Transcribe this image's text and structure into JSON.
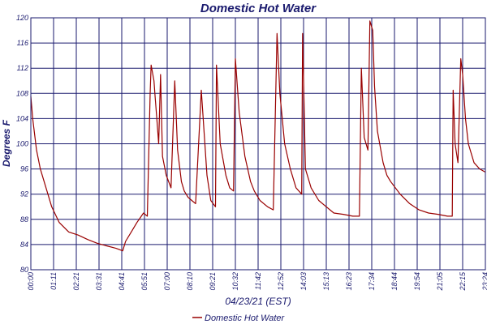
{
  "chart_data": {
    "type": "line",
    "title": "Domestic Hot Water",
    "xlabel": "04/23/21 (EST)",
    "ylabel": "Degrees F",
    "ylim": [
      80,
      120
    ],
    "yticks": [
      80,
      84,
      88,
      92,
      96,
      100,
      104,
      108,
      112,
      116,
      120
    ],
    "ytick_labels": [
      "80",
      "84",
      "88",
      "92",
      "96",
      "100",
      "104",
      "108",
      "112",
      "116",
      "120"
    ],
    "xlim": [
      0,
      24
    ],
    "xtick_labels": [
      "00:00",
      "01:11",
      "02:21",
      "03:31",
      "04:41",
      "05:51",
      "07:00",
      "08:10",
      "09:21",
      "10:32",
      "11:42",
      "12:52",
      "14:03",
      "15:13",
      "16:23",
      "17:34",
      "18:44",
      "19:54",
      "21:05",
      "22:15",
      "23:24"
    ],
    "grid": true,
    "legend_position": "bottom-center",
    "series": [
      {
        "name": "Domestic Hot Water",
        "color": "#990000",
        "x": [
          0.0,
          0.1,
          0.3,
          0.5,
          0.8,
          1.1,
          1.5,
          2.0,
          2.5,
          3.0,
          3.5,
          4.0,
          4.5,
          4.85,
          5.0,
          5.3,
          5.6,
          5.95,
          6.15,
          6.3,
          6.35,
          6.5,
          6.55,
          6.65,
          6.75,
          6.85,
          6.95,
          7.15,
          7.4,
          7.6,
          7.75,
          7.95,
          8.1,
          8.3,
          8.5,
          8.7,
          9.0,
          9.3,
          9.5,
          9.75,
          9.8,
          10.0,
          10.3,
          10.5,
          10.7,
          10.8,
          11.0,
          11.3,
          11.6,
          11.8,
          12.1,
          12.5,
          12.8,
          13.0,
          13.15,
          13.4,
          13.7,
          14.0,
          14.3,
          14.35,
          14.5,
          14.8,
          15.2,
          15.6,
          16.0,
          16.5,
          17.0,
          17.35,
          17.45,
          17.6,
          17.8,
          17.9,
          18.05,
          18.15,
          18.3,
          18.6,
          18.8,
          19.0,
          19.5,
          20.0,
          20.5,
          21.0,
          21.5,
          22.0,
          22.25,
          22.3,
          22.4,
          22.55,
          22.7,
          22.8,
          22.95,
          23.1,
          23.4,
          23.7,
          24.0
        ],
        "values": [
          107.5,
          104.0,
          99.0,
          96.0,
          93.0,
          90.0,
          87.5,
          86.0,
          85.5,
          84.8,
          84.2,
          83.8,
          83.4,
          83.0,
          84.5,
          86.0,
          87.5,
          89.0,
          88.5,
          108.0,
          112.5,
          110.0,
          108.0,
          104.0,
          100.0,
          111.0,
          98.0,
          95.0,
          93.0,
          110.0,
          99.0,
          94.0,
          92.5,
          91.5,
          91.0,
          90.5,
          108.5,
          95.0,
          91.0,
          90.0,
          112.5,
          100.0,
          95.0,
          93.0,
          92.5,
          113.5,
          105.0,
          98.0,
          94.0,
          92.5,
          91.0,
          90.0,
          89.5,
          117.5,
          108.0,
          100.0,
          96.0,
          93.0,
          92.0,
          117.5,
          96.0,
          93.0,
          91.0,
          90.0,
          89.0,
          88.8,
          88.5,
          88.5,
          112.0,
          101.0,
          99.0,
          119.5,
          118.0,
          109.0,
          102.0,
          97.0,
          95.0,
          94.0,
          92.0,
          90.5,
          89.5,
          89.0,
          88.8,
          88.5,
          88.5,
          108.5,
          100.0,
          97.0,
          113.5,
          111.0,
          104.0,
          100.0,
          97.0,
          96.0,
          95.5
        ]
      }
    ]
  }
}
